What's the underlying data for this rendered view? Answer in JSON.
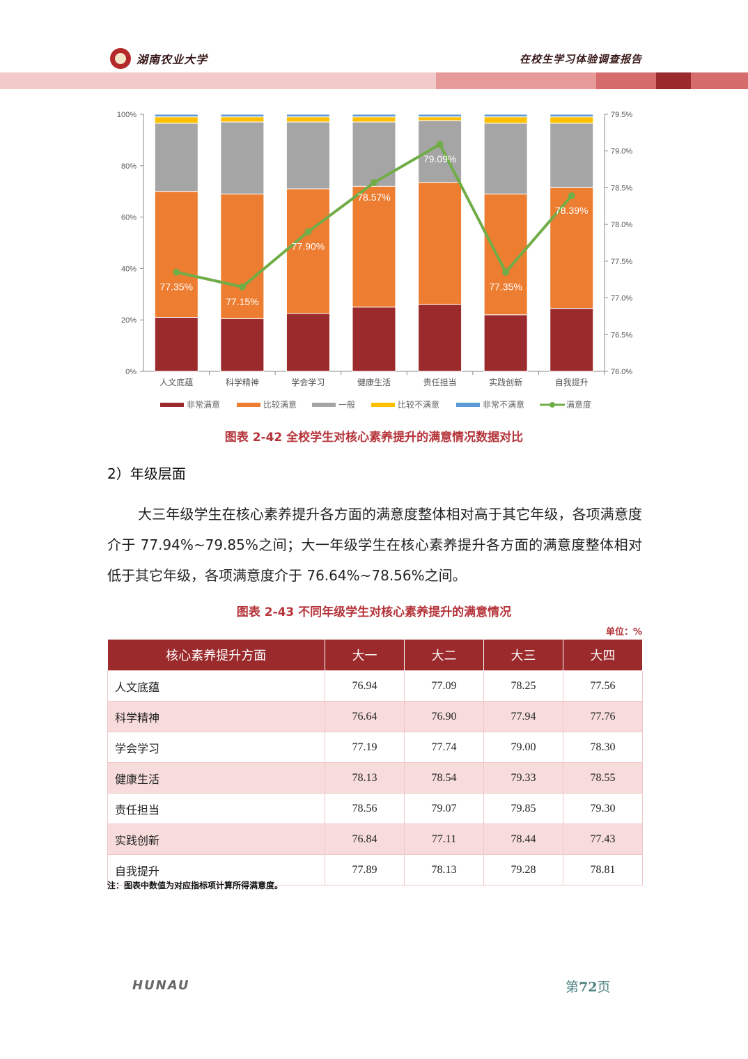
{
  "header": {
    "university": "湖南农业大学",
    "report_title": "在校生学习体验调查报告",
    "band_colors": [
      "#f3caca",
      "#e69a9a",
      "#d56b6b",
      "#9b2a2c",
      "#d56b6b"
    ]
  },
  "chart_data": {
    "type": "bar",
    "stacked": true,
    "categories": [
      "人文底蕴",
      "科学精神",
      "学会学习",
      "健康生活",
      "责任担当",
      "实践创新",
      "自我提升"
    ],
    "series": [
      {
        "name": "非常满意",
        "color": "#9b2a2c",
        "values": [
          21,
          20.5,
          22.5,
          25,
          26,
          22,
          24.5
        ]
      },
      {
        "name": "比较满意",
        "color": "#ed7d31",
        "values": [
          49,
          48.5,
          48.5,
          47,
          47.5,
          47,
          47
        ]
      },
      {
        "name": "一般",
        "color": "#a5a5a5",
        "values": [
          26.5,
          28,
          26,
          25,
          24,
          27.5,
          25
        ]
      },
      {
        "name": "比较不满意",
        "color": "#ffc000",
        "values": [
          2.5,
          2,
          2,
          2,
          1.5,
          2.5,
          2.5
        ]
      },
      {
        "name": "非常不满意",
        "color": "#5b9bd5",
        "values": [
          1,
          1,
          1,
          1,
          1,
          1,
          1
        ]
      }
    ],
    "line_series": {
      "name": "满意度",
      "color": "#70ad47",
      "values": [
        77.35,
        77.15,
        77.9,
        78.57,
        79.09,
        77.35,
        78.39
      ],
      "labels": [
        "77.35%",
        "77.15%",
        "77.90%",
        "78.57%",
        "79.09%",
        "77.35%",
        "78.39%"
      ]
    },
    "y_left": {
      "ticks": [
        "100%",
        "80%",
        "60%",
        "40%",
        "20%",
        "0%"
      ],
      "ylim": [
        0,
        100
      ]
    },
    "y_right": {
      "ticks": [
        "79.5%",
        "79.0%",
        "78.5%",
        "78.0%",
        "77.5%",
        "77.0%",
        "76.5%",
        "76.0%"
      ],
      "ylim": [
        76.0,
        79.5
      ]
    },
    "legend_position": "bottom"
  },
  "figure_caption": "图表 2-42 全校学生对核心素养提升的满意情况数据对比",
  "section_heading": "2）年级层面",
  "paragraph": "大三年级学生在核心素养提升各方面的满意度整体相对高于其它年级，各项满意度介于 77.94%~79.85%之间；大一年级学生在核心素养提升各方面的满意度整体相对低于其它年级，各项满意度介于 76.64%~78.56%之间。",
  "table_caption": "图表 2-43 不同年级学生对核心素养提升的满意情况",
  "unit_label": "单位：%",
  "table": {
    "headers": [
      "核心素养提升方面",
      "大一",
      "大二",
      "大三",
      "大四"
    ],
    "rows": [
      [
        "人文底蕴",
        "76.94",
        "77.09",
        "78.25",
        "77.56"
      ],
      [
        "科学精神",
        "76.64",
        "76.90",
        "77.94",
        "77.76"
      ],
      [
        "学会学习",
        "77.19",
        "77.74",
        "79.00",
        "78.30"
      ],
      [
        "健康生活",
        "78.13",
        "78.54",
        "79.33",
        "78.55"
      ],
      [
        "责任担当",
        "78.56",
        "79.07",
        "79.85",
        "79.30"
      ],
      [
        "实践创新",
        "76.84",
        "77.11",
        "78.44",
        "77.43"
      ],
      [
        "自我提升",
        "77.89",
        "78.13",
        "79.28",
        "78.81"
      ]
    ]
  },
  "table_note": "注：图表中数值为对应指标项计算所得满意度。",
  "footer": {
    "logo_text": "HUNAU",
    "page_prefix": "第",
    "page_number": "72",
    "page_suffix": "页"
  }
}
